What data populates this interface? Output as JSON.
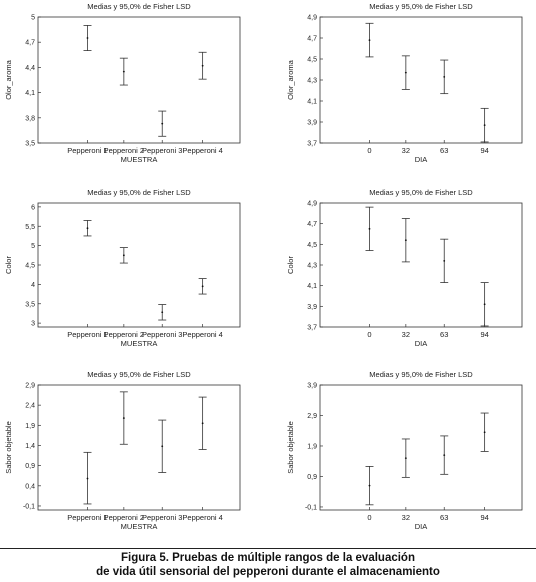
{
  "chart_data": [
    {
      "type": "scatter",
      "title": "Medias y 95,0% de Fisher LSD",
      "xlabel": "MUESTRA",
      "ylabel": "Olor_aroma",
      "categories": [
        "Pepperoni 1",
        "Pepperoni 2",
        "Pepperoni 3",
        "Pepperoni 4"
      ],
      "ylim": [
        3.5,
        5.0
      ],
      "yticks": [
        "3,5",
        "3,8",
        "4,1",
        "4,4",
        "4,7",
        "5"
      ],
      "series": [
        {
          "mean": [
            4.75,
            4.35,
            3.73,
            4.42
          ],
          "lower": [
            4.6,
            4.19,
            3.58,
            4.26
          ],
          "upper": [
            4.9,
            4.51,
            3.88,
            4.58
          ]
        }
      ],
      "grid": false
    },
    {
      "type": "scatter",
      "title": "Medias y 95,0% de Fisher LSD",
      "xlabel": "DIA",
      "ylabel": "Olor_aroma",
      "categories": [
        "0",
        "32",
        "63",
        "94"
      ],
      "ylim": [
        3.7,
        4.9
      ],
      "yticks": [
        "3,7",
        "3,9",
        "4,1",
        "4,3",
        "4,5",
        "4,7",
        "4,9"
      ],
      "series": [
        {
          "mean": [
            4.68,
            4.37,
            4.33,
            3.87
          ],
          "lower": [
            4.52,
            4.21,
            4.17,
            3.71
          ],
          "upper": [
            4.84,
            4.53,
            4.49,
            4.03
          ]
        }
      ],
      "grid": false
    },
    {
      "type": "scatter",
      "title": "Medias y 95,0% de Fisher LSD",
      "xlabel": "MUESTRA",
      "ylabel": "Color",
      "categories": [
        "Pepperoni 1",
        "Pepperoni 2",
        "Pepperoni 3",
        "Pepperoni 4"
      ],
      "ylim": [
        2.9,
        6.1
      ],
      "yticks": [
        "3",
        "3,5",
        "4",
        "4,5",
        "5",
        "5,5",
        "6"
      ],
      "series": [
        {
          "mean": [
            5.45,
            4.75,
            3.28,
            3.95
          ],
          "lower": [
            5.25,
            4.55,
            3.08,
            3.75
          ],
          "upper": [
            5.65,
            4.95,
            3.48,
            4.15
          ]
        }
      ],
      "grid": false
    },
    {
      "type": "scatter",
      "title": "Medias y 95,0% de Fisher LSD",
      "xlabel": "DIA",
      "ylabel": "Color",
      "categories": [
        "0",
        "32",
        "63",
        "94"
      ],
      "ylim": [
        3.7,
        4.9
      ],
      "yticks": [
        "3,7",
        "3,9",
        "4,1",
        "4,3",
        "4,5",
        "4,7",
        "4,9"
      ],
      "series": [
        {
          "mean": [
            4.65,
            4.54,
            4.34,
            3.92
          ],
          "lower": [
            4.44,
            4.33,
            4.13,
            3.71
          ],
          "upper": [
            4.86,
            4.75,
            4.55,
            4.13
          ]
        }
      ],
      "grid": false
    },
    {
      "type": "scatter",
      "title": "Medias y 95,0% de Fisher LSD",
      "xlabel": "MUESTRA",
      "ylabel": "Sabor objetable",
      "categories": [
        "Pepperoni 1",
        "Pepperoni 2",
        "Pepperoni 3",
        "Pepperoni 4"
      ],
      "ylim": [
        -0.2,
        2.9
      ],
      "yticks": [
        "-0,1",
        "0,4",
        "0,9",
        "1,4",
        "1,9",
        "2,4",
        "2,9"
      ],
      "series": [
        {
          "mean": [
            0.58,
            2.08,
            1.38,
            1.95
          ],
          "lower": [
            -0.05,
            1.43,
            0.73,
            1.3
          ],
          "upper": [
            1.23,
            2.73,
            2.03,
            2.6
          ]
        }
      ],
      "grid": false
    },
    {
      "type": "scatter",
      "title": "Medias y 95,0% de Fisher LSD",
      "xlabel": "DIA",
      "ylabel": "Sabor objetable",
      "categories": [
        "0",
        "32",
        "63",
        "94"
      ],
      "ylim": [
        -0.2,
        3.9
      ],
      "yticks": [
        "-0,1",
        "0,9",
        "1,9",
        "2,9",
        "3,9"
      ],
      "series": [
        {
          "mean": [
            0.6,
            1.5,
            1.6,
            2.35
          ],
          "lower": [
            -0.03,
            0.87,
            0.97,
            1.72
          ],
          "upper": [
            1.23,
            2.13,
            2.23,
            2.98
          ]
        }
      ],
      "grid": false
    }
  ],
  "caption": {
    "line1": "Figura 5. Pruebas de múltiple rangos de la evaluación",
    "line2": "de vida útil sensorial del pepperoni durante el almacenamiento"
  }
}
